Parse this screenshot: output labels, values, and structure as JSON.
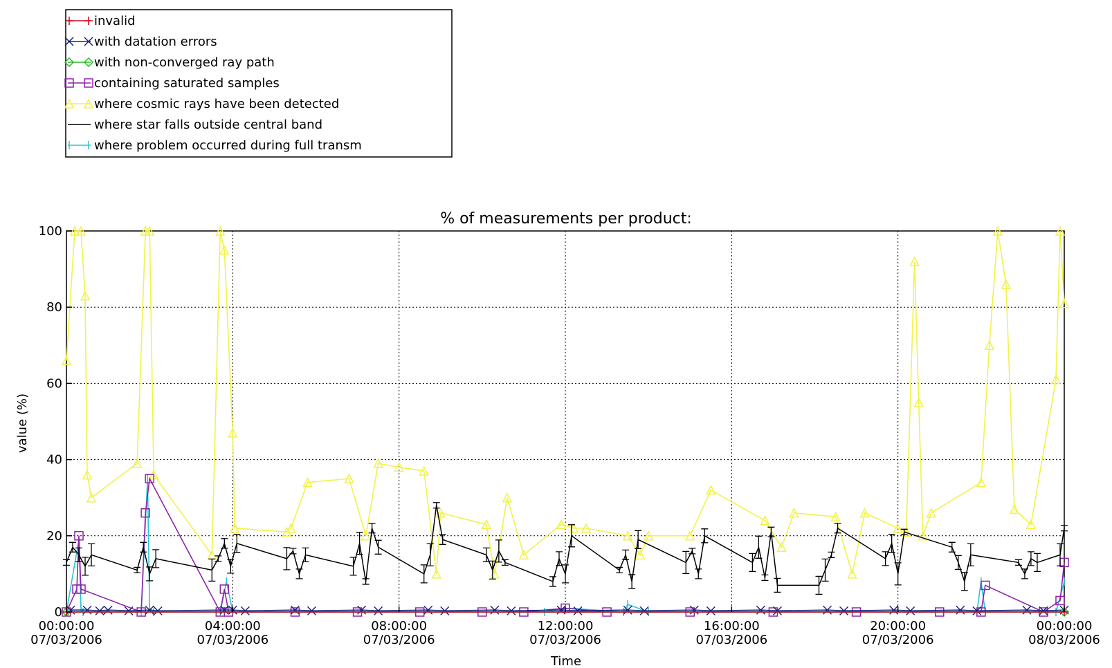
{
  "chart_data": {
    "type": "line",
    "title": "% of measurements per product:",
    "xlabel": "Time",
    "ylabel": "value (%)",
    "ylim": [
      0,
      100
    ],
    "xlim": [
      "00:00:00 07/03/2006",
      "00:00:00 08/03/2006"
    ],
    "x_unit": "hours since 00:00:00 07/03/2006",
    "grid": "dotted",
    "legend_position": "top-left, outside plot",
    "yticks": [
      "0",
      "20",
      "40",
      "60",
      "80",
      "100"
    ],
    "xticks": [
      {
        "time": "00:00:00",
        "date": "07/03/2006"
      },
      {
        "time": "04:00:00",
        "date": "07/03/2006"
      },
      {
        "time": "08:00:00",
        "date": "07/03/2006"
      },
      {
        "time": "12:00:00",
        "date": "07/03/2006"
      },
      {
        "time": "16:00:00",
        "date": "07/03/2006"
      },
      {
        "time": "20:00:00",
        "date": "07/03/2006"
      },
      {
        "time": "00:00:00",
        "date": "08/03/2006"
      }
    ],
    "series": [
      {
        "name": "invalid",
        "color": "#d0021b",
        "marker": "plus",
        "x": [
          0,
          24
        ],
        "y": [
          0,
          0
        ]
      },
      {
        "name": "with datation errors",
        "color": "#1a237e",
        "marker": "x",
        "x": [
          0.1,
          0.5,
          0.8,
          1.0,
          1.5,
          2.0,
          2.2,
          3.8,
          4.0,
          4.3,
          5.5,
          5.9,
          7.1,
          7.5,
          8.7,
          9.1,
          10.3,
          10.7,
          11.9,
          12.3,
          13.5,
          13.9,
          15.1,
          15.5,
          16.7,
          17.1,
          18.3,
          18.7,
          19.9,
          20.3,
          21.5,
          21.9,
          23.1,
          23.5,
          24.0
        ],
        "y": [
          0.5,
          0.5,
          0.3,
          0.5,
          0.3,
          0.5,
          0.3,
          0.5,
          0.5,
          0.3,
          0.5,
          0.3,
          0.5,
          0.3,
          0.5,
          0.3,
          0.5,
          0.3,
          0.5,
          0.3,
          0.5,
          0.3,
          0.5,
          0.3,
          0.5,
          0.3,
          0.5,
          0.3,
          0.5,
          0.3,
          0.5,
          0.3,
          0.5,
          0.3,
          0.5
        ]
      },
      {
        "name": "with non-converged ray path",
        "color": "#2bb82b",
        "marker": "diamond",
        "x": [
          0,
          24
        ],
        "y": [
          0,
          0
        ]
      },
      {
        "name": "containing saturated samples",
        "color": "#8e24aa",
        "marker": "square",
        "x": [
          0.0,
          0.25,
          0.3,
          0.35,
          1.8,
          1.9,
          2.0,
          3.7,
          3.8,
          3.9,
          5.5,
          7.0,
          8.5,
          10.0,
          11.0,
          12.0,
          13.0,
          15.0,
          17.0,
          19.0,
          21.0,
          22.0,
          22.1,
          23.5,
          23.9,
          24.0
        ],
        "y": [
          0,
          6,
          20,
          6,
          0,
          26,
          35,
          0,
          6,
          0,
          0,
          0,
          0,
          0,
          0,
          1,
          0,
          0,
          0,
          0,
          0,
          0,
          7,
          0,
          3,
          13
        ]
      },
      {
        "name": "where cosmic rays have been detected",
        "color": "#f2f24a",
        "marker": "triangle",
        "x": [
          0.0,
          0.2,
          0.35,
          0.45,
          0.5,
          0.6,
          1.7,
          1.9,
          2.0,
          2.1,
          3.5,
          3.7,
          3.8,
          4.0,
          4.05,
          5.3,
          5.4,
          5.8,
          6.8,
          7.2,
          7.5,
          8.0,
          8.6,
          8.9,
          9.0,
          10.1,
          10.3,
          10.6,
          11.0,
          11.9,
          12.2,
          12.5,
          13.5,
          13.8,
          14.0,
          15.0,
          15.5,
          16.8,
          17.2,
          17.5,
          18.5,
          18.9,
          19.2,
          20.0,
          20.2,
          20.4,
          20.5,
          20.6,
          20.8,
          22.0,
          22.2,
          22.4,
          22.6,
          22.8,
          23.2,
          23.8,
          23.9,
          24.0
        ],
        "y": [
          66,
          100,
          100,
          83,
          36,
          30,
          39,
          100,
          100,
          36,
          15,
          100,
          95,
          47,
          22,
          21,
          22,
          34,
          35,
          20,
          39,
          38,
          37,
          10,
          26,
          23,
          10,
          30,
          15,
          23,
          22,
          22,
          20,
          15,
          20,
          20,
          32,
          24,
          17,
          26,
          25,
          10,
          26,
          22,
          21,
          92,
          55,
          20,
          26,
          34,
          70,
          100,
          86,
          27,
          23,
          61,
          100,
          81
        ]
      },
      {
        "name": "where star falls outside central band",
        "color": "#000000",
        "marker": "none",
        "errorbars": true,
        "x": [
          0.0,
          0.15,
          0.3,
          0.45,
          0.6,
          1.7,
          1.85,
          2.0,
          2.15,
          3.5,
          3.65,
          3.8,
          3.95,
          4.1,
          5.3,
          5.45,
          5.6,
          5.75,
          6.9,
          7.05,
          7.2,
          7.35,
          7.5,
          8.6,
          8.75,
          8.9,
          9.05,
          10.1,
          10.25,
          10.4,
          10.55,
          11.7,
          11.85,
          12.0,
          12.15,
          13.3,
          13.45,
          13.6,
          13.75,
          14.9,
          15.05,
          15.2,
          15.35,
          16.5,
          16.65,
          16.8,
          16.95,
          17.1,
          18.1,
          18.25,
          18.4,
          18.55,
          19.7,
          19.85,
          20.0,
          20.15,
          21.3,
          21.45,
          21.6,
          21.75,
          22.9,
          23.05,
          23.2,
          23.35,
          23.9,
          24.0
        ],
        "y": [
          13,
          17,
          15,
          12,
          15,
          11,
          17,
          10,
          14,
          11,
          14,
          18,
          12,
          18,
          14,
          16,
          10,
          15,
          12,
          18,
          8,
          22,
          17,
          10,
          15,
          28,
          19,
          15,
          11,
          16,
          13,
          8,
          14,
          10,
          20,
          11,
          15,
          8,
          19,
          13,
          16,
          10,
          20,
          13,
          17,
          9,
          21,
          7,
          7,
          11,
          15,
          22,
          14,
          18,
          10,
          21,
          17,
          13,
          8,
          15,
          13,
          10,
          14,
          13,
          15,
          22
        ]
      },
      {
        "name": "where problem occurred during full transm",
        "color": "#2bc4d6",
        "marker": "vbar",
        "x": [
          0.0,
          0.3,
          0.35,
          0.4,
          1.8,
          1.95,
          2.0,
          2.1,
          3.7,
          3.85,
          4.0,
          11.5,
          12.1,
          13.4,
          13.5,
          14.0,
          21.9,
          22.0,
          22.1,
          23.8,
          24.0
        ],
        "y": [
          0,
          19,
          1,
          0,
          0,
          35,
          1,
          0,
          0,
          8,
          0,
          0,
          1,
          0,
          2,
          0,
          0,
          8,
          0,
          0,
          8
        ]
      }
    ]
  }
}
